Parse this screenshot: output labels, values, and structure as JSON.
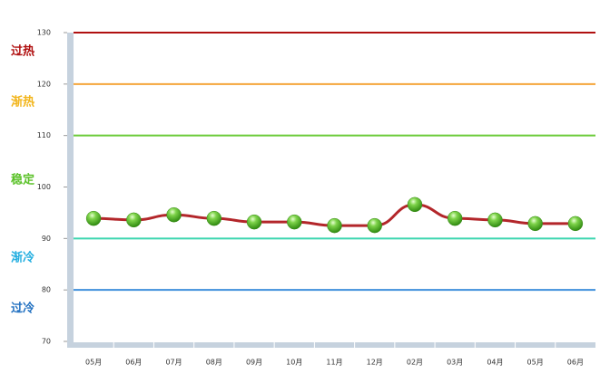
{
  "chart_data": {
    "type": "line",
    "categories": [
      "05月",
      "06月",
      "07月",
      "08月",
      "09月",
      "10月",
      "11月",
      "12月",
      "02月",
      "03月",
      "04月",
      "05月",
      "06月"
    ],
    "series": [
      {
        "color": "#b3262a",
        "values": [
          93.9,
          93.6,
          94.6,
          93.9,
          93.2,
          93.2,
          92.5,
          92.5,
          96.6,
          93.9,
          93.6,
          92.9,
          92.9
        ]
      }
    ],
    "ylim": [
      70,
      130
    ],
    "yticks": [
      70,
      80,
      90,
      100,
      110,
      120,
      130
    ],
    "reference_lines": [
      {
        "value": 130,
        "color": "#b01010"
      },
      {
        "value": 120,
        "color": "#f4a53a"
      },
      {
        "value": 110,
        "color": "#6ccc3a"
      },
      {
        "value": 90,
        "color": "#3fd6b0"
      },
      {
        "value": 80,
        "color": "#3f8fdc"
      }
    ],
    "zones": [
      {
        "label": "过热",
        "color": "#b01010"
      },
      {
        "label": "渐热",
        "color": "#f2b51c"
      },
      {
        "label": "稳定",
        "color": "#5cc22a"
      },
      {
        "label": "渐冷",
        "color": "#22aee0"
      },
      {
        "label": "过冷",
        "color": "#1f6fc0"
      }
    ]
  }
}
